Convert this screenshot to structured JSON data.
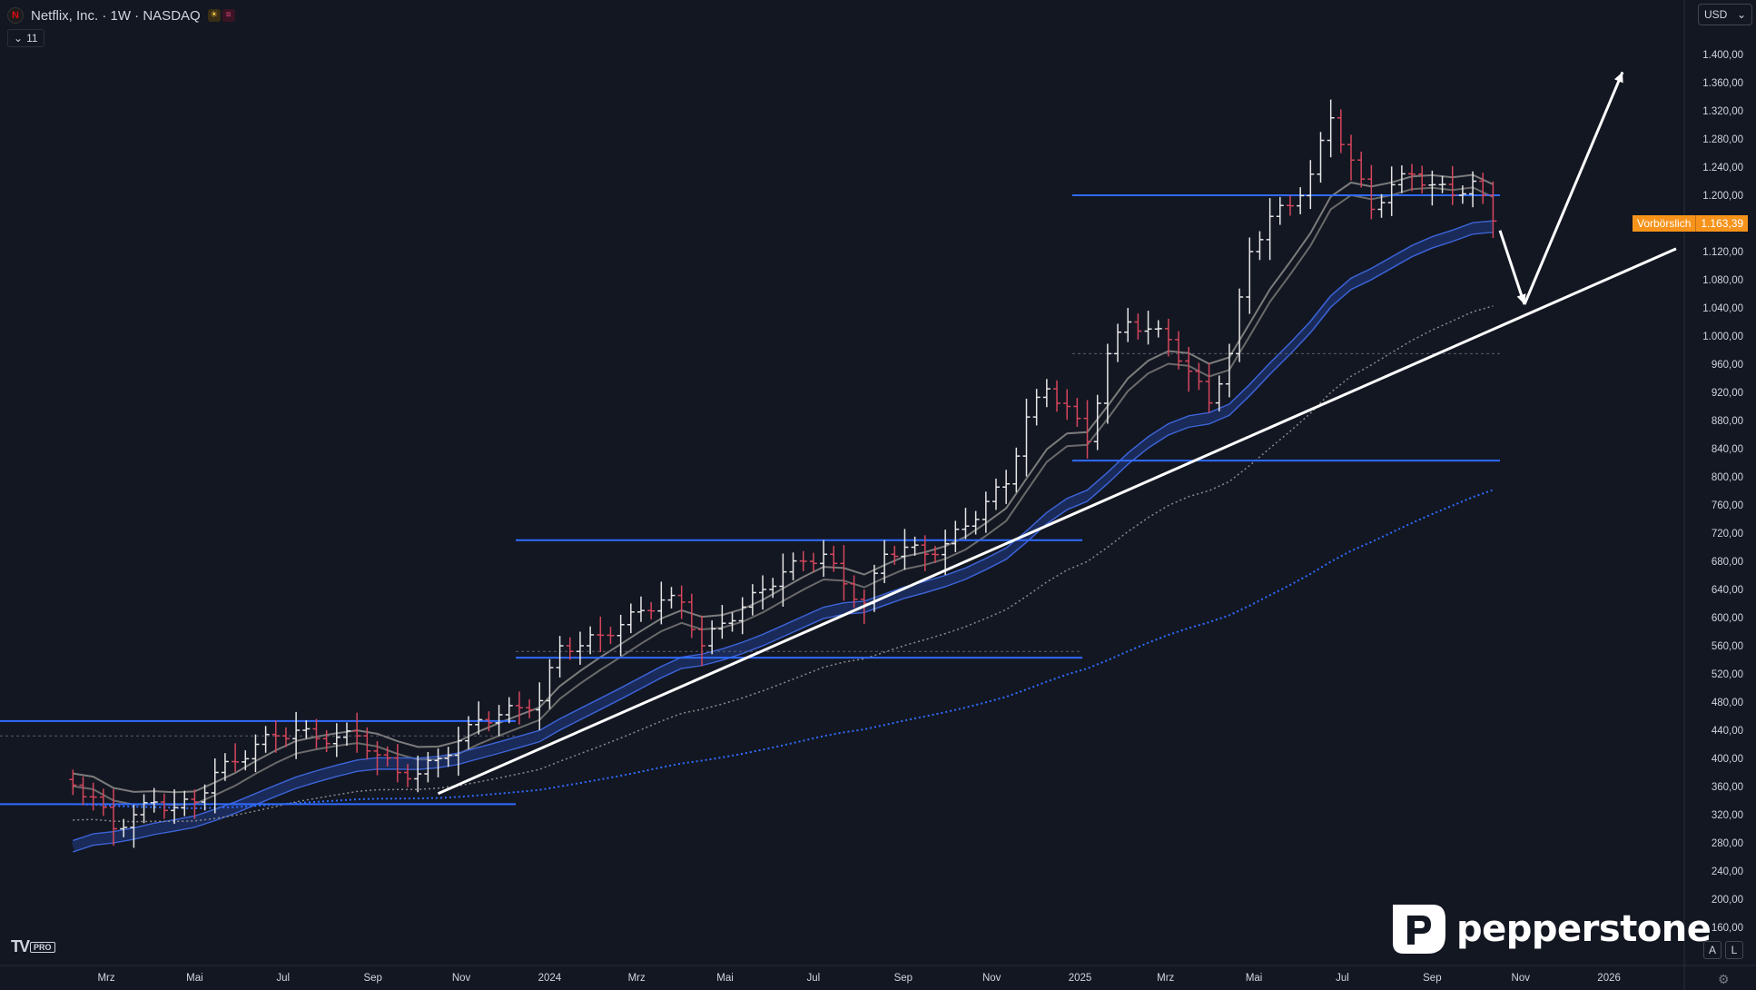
{
  "header": {
    "title": "Netflix, Inc. · 1W · NASDAQ",
    "indicator_count": "11",
    "currency": "USD"
  },
  "price_tag": {
    "label": "Vorbörslich",
    "value": "1.163,39"
  },
  "brand": {
    "tradingview": "TV",
    "tradingview_tier": "PRO",
    "broker": "pepperstone"
  },
  "buttons": {
    "auto": "A",
    "log": "L"
  },
  "colors": {
    "background": "#131722",
    "up_bar": "#e6e6e6",
    "down_bar": "#d5465b",
    "level_lines": "#2f6bff",
    "trendline": "#ffffff",
    "ema_fast": "#9a9a9a",
    "ema_mid": "#2f5bd8",
    "sma_dotted_gray": "#8a8a8a",
    "sma_dotted_blue": "#2f6bff",
    "price_tag": "#f7931a"
  },
  "chart_data": {
    "type": "ohlc",
    "timeframe": "1W",
    "symbol": "Netflix, Inc. · NASDAQ",
    "x_tick_labels": [
      "Mrz",
      "Mai",
      "Jul",
      "Sep",
      "Nov",
      "2024",
      "Mrz",
      "Mai",
      "Jul",
      "Sep",
      "Nov",
      "2025",
      "Mrz",
      "Mai",
      "Jul",
      "Sep",
      "Nov",
      "2026"
    ],
    "y_tick_labels": [
      "160,00",
      "200,00",
      "240,00",
      "280,00",
      "320,00",
      "360,00",
      "400,00",
      "440,00",
      "480,00",
      "520,00",
      "560,00",
      "600,00",
      "640,00",
      "680,00",
      "720,00",
      "760,00",
      "800,00",
      "840,00",
      "880,00",
      "920,00",
      "960,00",
      "1.000,00",
      "1.040,00",
      "1.080,00",
      "1.120,00",
      "1.160,00",
      "1.200,00",
      "1.240,00",
      "1.280,00",
      "1.320,00",
      "1.360,00",
      "1.400,00"
    ],
    "ylim": [
      140,
      1420
    ],
    "close_series": {
      "dates": [
        "2023-02-06",
        "2023-02-20",
        "2023-03-06",
        "2023-03-20",
        "2023-04-03",
        "2023-04-17",
        "2023-05-01",
        "2023-05-15",
        "2023-05-29",
        "2023-06-12",
        "2023-06-26",
        "2023-07-10",
        "2023-07-24",
        "2023-08-07",
        "2023-08-21",
        "2023-09-04",
        "2023-09-18",
        "2023-10-02",
        "2023-10-16",
        "2023-10-30",
        "2023-11-13",
        "2023-11-27",
        "2023-12-11",
        "2023-12-25",
        "2024-01-08",
        "2024-01-22",
        "2024-02-05",
        "2024-02-19",
        "2024-03-04",
        "2024-03-18",
        "2024-04-01",
        "2024-04-15",
        "2024-04-29",
        "2024-05-13",
        "2024-05-27",
        "2024-06-10",
        "2024-06-24",
        "2024-07-08",
        "2024-07-22",
        "2024-08-05",
        "2024-08-19",
        "2024-09-02",
        "2024-09-16",
        "2024-09-30",
        "2024-10-14",
        "2024-10-28",
        "2024-11-11",
        "2024-11-25",
        "2024-12-09",
        "2024-12-23",
        "2025-01-06",
        "2025-01-20",
        "2025-02-03",
        "2025-02-17",
        "2025-03-03",
        "2025-03-17",
        "2025-03-31",
        "2025-04-14",
        "2025-04-28",
        "2025-05-12",
        "2025-05-26",
        "2025-06-09",
        "2025-06-23",
        "2025-07-07",
        "2025-07-21",
        "2025-08-04",
        "2025-08-18",
        "2025-09-01",
        "2025-09-15",
        "2025-09-29",
        "2025-10-13"
      ],
      "close": [
        362,
        345,
        300,
        320,
        338,
        330,
        338,
        380,
        395,
        420,
        432,
        440,
        428,
        430,
        432,
        405,
        380,
        378,
        400,
        425,
        455,
        462,
        472,
        482,
        560,
        560,
        575,
        590,
        610,
        625,
        622,
        560,
        592,
        615,
        640,
        665,
        680,
        690,
        648,
        620,
        690,
        700,
        690,
        705,
        730,
        765,
        790,
        885,
        925,
        900,
        850,
        975,
        1020,
        1010,
        995,
        950,
        905,
        975,
        1120,
        1170,
        1185,
        1230,
        1310,
        1250,
        1180,
        1215,
        1230,
        1215,
        1200,
        1220,
        1163.39
      ]
    },
    "levels": [
      {
        "label": "level-440",
        "value": 453,
        "from": "2023-01",
        "to": "2023-12"
      },
      {
        "label": "level-340",
        "value": 335,
        "from": "2023-01",
        "to": "2023-12"
      },
      {
        "label": "level-710",
        "value": 710,
        "from": "2024-01",
        "to": "2024-10"
      },
      {
        "label": "level-540",
        "value": 543,
        "from": "2024-01",
        "to": "2024-10"
      },
      {
        "label": "level-1200",
        "value": 1200,
        "from": "2024-12",
        "to": "2025-10"
      },
      {
        "label": "level-820",
        "value": 823,
        "from": "2024-12",
        "to": "2025-10"
      }
    ],
    "trendline": {
      "from": {
        "date": "2023-10-16",
        "value": 350
      },
      "to": {
        "date": "2025-12-01",
        "value": 1135
      }
    },
    "projection_arrows": [
      {
        "from": {
          "date": "2025-10-13",
          "value": 1150
        },
        "to": {
          "date": "2025-10-27",
          "value": 1045
        }
      },
      {
        "from": {
          "date": "2025-10-27",
          "value": 1045
        },
        "to": {
          "date": "2025-12-01",
          "value": 1375
        }
      }
    ],
    "grid": false,
    "legend": "none"
  }
}
